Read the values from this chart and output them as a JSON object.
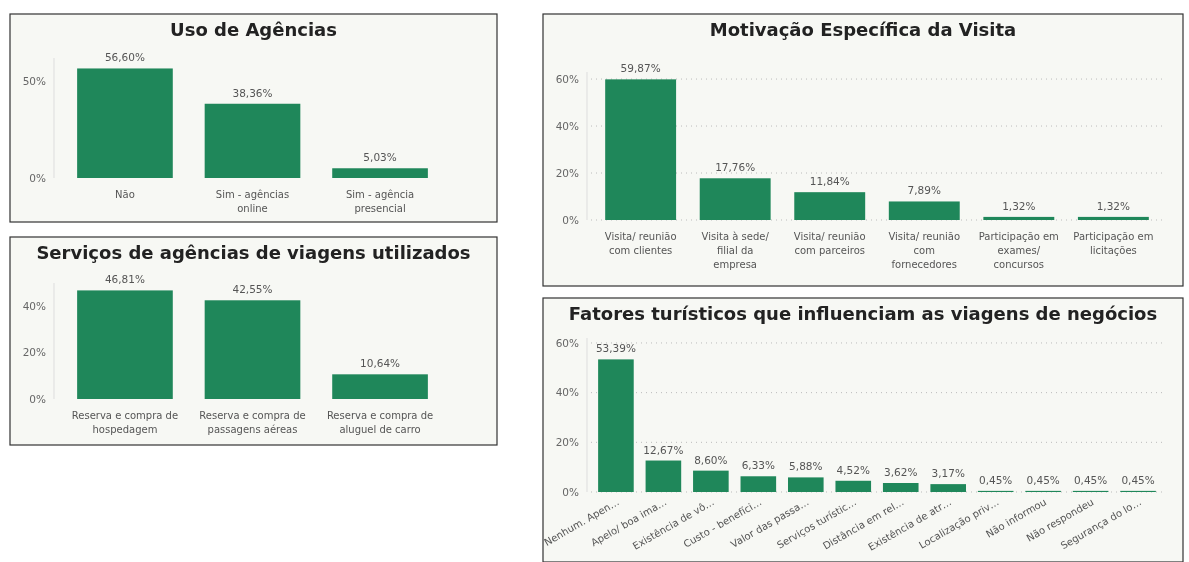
{
  "chart_data": [
    {
      "type": "bar",
      "title": "Uso de Agências",
      "categories": [
        "Não",
        "Sim - agências online",
        "Sim - agência presencial"
      ],
      "values": [
        56.6,
        38.36,
        5.03
      ],
      "value_labels": [
        "56,60%",
        "38,36%",
        "5,03%"
      ],
      "color": "#1f875a",
      "ylim": [
        0,
        62
      ],
      "yticks": [
        {
          "value": 0,
          "label": "0%"
        },
        {
          "value": 50,
          "label": "50%"
        }
      ]
    },
    {
      "type": "bar",
      "title": "Serviços de agências de viagens utilizados",
      "categories": [
        "Reserva e compra de hospedagem",
        "Reserva e compra de passagens aéreas",
        "Reserva e compra de aluguel de carro"
      ],
      "values": [
        46.81,
        42.55,
        10.64
      ],
      "value_labels": [
        "46,81%",
        "42,55%",
        "10,64%"
      ],
      "color": "#1f875a",
      "ylim": [
        0,
        50
      ],
      "yticks": [
        {
          "value": 0,
          "label": "0%"
        },
        {
          "value": 20,
          "label": "20%"
        },
        {
          "value": 40,
          "label": "40%"
        }
      ]
    },
    {
      "type": "bar",
      "title": "Motivação Específica da Visita",
      "categories": [
        "Visita/ reunião com clientes",
        "Visita à sede/ filial da empresa",
        "Visita/ reunião com parceiros",
        "Visita/ reunião com fornecedores",
        "Participação em exames/ concursos",
        "Participação em licitações"
      ],
      "values": [
        59.87,
        17.76,
        11.84,
        7.89,
        1.32,
        1.32
      ],
      "value_labels": [
        "59,87%",
        "17,76%",
        "11,84%",
        "7,89%",
        "1,32%",
        "1,32%"
      ],
      "color": "#1f875a",
      "ylim": [
        0,
        63
      ],
      "yticks": [
        {
          "value": 0,
          "label": "0%"
        },
        {
          "value": 20,
          "label": "20%"
        },
        {
          "value": 40,
          "label": "40%"
        },
        {
          "value": 60,
          "label": "60%"
        }
      ],
      "grid": "y"
    },
    {
      "type": "bar",
      "title": "Fatores turísticos que influenciam as viagens de negócios",
      "categories": [
        "Nenhum. Apen…",
        "Apelo/ boa ima…",
        "Existência de vô…",
        "Custo - benefíci…",
        "Valor das passa…",
        "Serviços turístic…",
        "Distância em rel…",
        "Existência de atr…",
        "Localização priv…",
        "Não informou",
        "Não respondeu",
        "Segurança do lo…"
      ],
      "values": [
        53.39,
        12.67,
        8.6,
        6.33,
        5.88,
        4.52,
        3.62,
        3.17,
        0.45,
        0.45,
        0.45,
        0.45
      ],
      "value_labels": [
        "53,39%",
        "12,67%",
        "8,60%",
        "6,33%",
        "5,88%",
        "4,52%",
        "3,62%",
        "3,17%",
        "0,45%",
        "0,45%",
        "0,45%",
        "0,45%"
      ],
      "color": "#1f875a",
      "ylim": [
        0,
        62
      ],
      "yticks": [
        {
          "value": 0,
          "label": "0%"
        },
        {
          "value": 20,
          "label": "20%"
        },
        {
          "value": 40,
          "label": "40%"
        },
        {
          "value": 60,
          "label": "60%"
        }
      ],
      "grid": "y"
    }
  ]
}
